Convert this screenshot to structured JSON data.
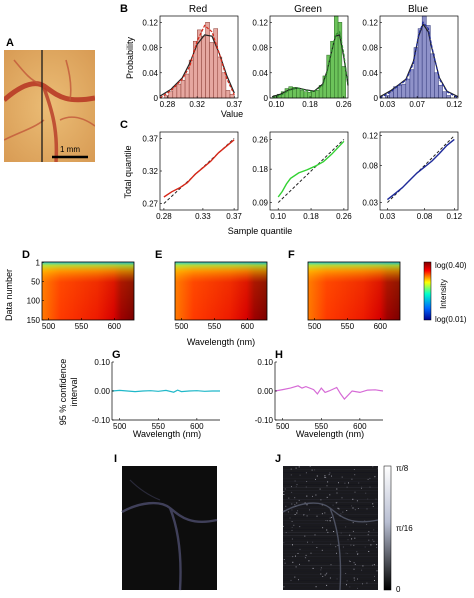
{
  "panel_letters": [
    "A",
    "B",
    "C",
    "D",
    "E",
    "F",
    "G",
    "H",
    "I",
    "J"
  ],
  "photo": {
    "scale_label": "1 mm",
    "colors": {
      "background": "#e3b067",
      "vessel": "#b83a26"
    }
  },
  "hist_titles": [
    "Red",
    "Green",
    "Blue"
  ],
  "labels": {
    "b_ylabel": "Probability",
    "b_xlabel": "Value",
    "c_ylabel": "Total quantile",
    "c_xlabel": "Sample quantile",
    "d_ylabel": "Data number",
    "ef_xlabel": "Wavelength (nm)",
    "g_ylabel_line1": "95 % confidence",
    "g_ylabel_line2": "interval",
    "g_xlabel": "Wavelength (nm)",
    "h_xlabel": "Wavelength (nm)",
    "intensity_label": "Intensity",
    "cbar_top": "log(0.40)",
    "cbar_bottom": "log(0.01)",
    "j_cbar_top": "π/8",
    "j_cbar_mid": "π/16",
    "j_cbar_bottom": "0"
  },
  "chart_data": [
    {
      "panel": "B",
      "type": "bar",
      "title": "Red",
      "ylabel": "Probability",
      "xlabel": "Value",
      "xlim": [
        0.27,
        0.375
      ],
      "ylim": [
        0,
        0.13
      ],
      "xticks": [
        "0.28",
        "0.32",
        "0.37"
      ],
      "xtick_values": [
        0.28,
        0.32,
        0.37
      ],
      "yticks": [
        "0",
        "0.04",
        "0.08",
        "0.12"
      ],
      "ytick_values": [
        0,
        0.04,
        0.08,
        0.12
      ],
      "bin_width": 0.0055,
      "bins_x": [
        0.279,
        0.2845,
        0.29,
        0.2955,
        0.301,
        0.3065,
        0.312,
        0.3175,
        0.323,
        0.3285,
        0.334,
        0.3395,
        0.345,
        0.3505,
        0.356,
        0.3615,
        0.367
      ],
      "values": [
        0.004,
        0.01,
        0.018,
        0.022,
        0.028,
        0.038,
        0.06,
        0.09,
        0.108,
        0.098,
        0.12,
        0.088,
        0.11,
        0.065,
        0.04,
        0.012,
        0.006
      ],
      "colors": {
        "bar": "#e6a7a0",
        "edge": "#8a3c34",
        "fit_line": "#d62718",
        "kde_line": "#222222"
      },
      "fit_x": [
        0.27,
        0.285,
        0.3,
        0.31,
        0.32,
        0.33,
        0.34,
        0.35,
        0.36,
        0.37
      ],
      "fit_y": [
        0.0,
        0.012,
        0.03,
        0.05,
        0.09,
        0.115,
        0.105,
        0.07,
        0.03,
        0.005
      ],
      "kde_x": [
        0.27,
        0.285,
        0.3,
        0.31,
        0.32,
        0.33,
        0.34,
        0.35,
        0.36,
        0.37
      ],
      "kde_y": [
        0.003,
        0.014,
        0.032,
        0.055,
        0.085,
        0.1,
        0.098,
        0.07,
        0.035,
        0.008
      ]
    },
    {
      "panel": "B",
      "type": "bar",
      "title": "Green",
      "xlim": [
        0.085,
        0.27
      ],
      "ylim": [
        0,
        0.13
      ],
      "xticks": [
        "0.10",
        "0.18",
        "0.26"
      ],
      "xtick_values": [
        0.1,
        0.18,
        0.26
      ],
      "yticks": [
        "0",
        "0.04",
        "0.08",
        "0.12"
      ],
      "ytick_values": [
        0,
        0.04,
        0.08,
        0.12
      ],
      "bin_width": 0.009,
      "bins_x": [
        0.098,
        0.107,
        0.116,
        0.125,
        0.134,
        0.143,
        0.152,
        0.161,
        0.17,
        0.179,
        0.188,
        0.197,
        0.206,
        0.215,
        0.224,
        0.233,
        0.242,
        0.251,
        0.26
      ],
      "values": [
        0.004,
        0.006,
        0.01,
        0.015,
        0.018,
        0.017,
        0.015,
        0.012,
        0.01,
        0.009,
        0.01,
        0.012,
        0.02,
        0.035,
        0.068,
        0.09,
        0.13,
        0.12,
        0.05
      ],
      "colors": {
        "bar": "#6cc35a",
        "edge": "#2e6b26",
        "fit_line": "#2e8b2e",
        "kde_line": "#222222"
      },
      "fit_x": [
        0.09,
        0.11,
        0.13,
        0.15,
        0.17,
        0.19,
        0.21,
        0.22,
        0.23,
        0.24,
        0.25,
        0.26,
        0.27
      ],
      "fit_y": [
        0.0,
        0.004,
        0.012,
        0.016,
        0.012,
        0.01,
        0.02,
        0.04,
        0.07,
        0.1,
        0.105,
        0.07,
        0.02
      ],
      "kde_x": [
        0.09,
        0.11,
        0.13,
        0.15,
        0.17,
        0.19,
        0.21,
        0.22,
        0.23,
        0.24,
        0.25,
        0.26,
        0.27
      ],
      "kde_y": [
        0.002,
        0.006,
        0.013,
        0.016,
        0.013,
        0.011,
        0.022,
        0.042,
        0.07,
        0.098,
        0.1,
        0.065,
        0.02
      ]
    },
    {
      "panel": "B",
      "type": "bar",
      "title": "Blue",
      "xlim": [
        0.02,
        0.125
      ],
      "ylim": [
        0,
        0.13
      ],
      "xticks": [
        "0.03",
        "0.07",
        "0.12"
      ],
      "xtick_values": [
        0.03,
        0.07,
        0.12
      ],
      "yticks": [
        "0",
        "0.04",
        "0.08",
        "0.12"
      ],
      "ytick_values": [
        0,
        0.04,
        0.08,
        0.12
      ],
      "bin_width": 0.0055,
      "bins_x": [
        0.03,
        0.0355,
        0.041,
        0.0465,
        0.052,
        0.0575,
        0.063,
        0.0685,
        0.074,
        0.0795,
        0.085,
        0.0905,
        0.096,
        0.1015,
        0.107,
        0.1125
      ],
      "values": [
        0.004,
        0.01,
        0.018,
        0.02,
        0.022,
        0.03,
        0.045,
        0.08,
        0.11,
        0.13,
        0.115,
        0.07,
        0.04,
        0.02,
        0.01,
        0.004
      ],
      "colors": {
        "bar": "#8f92c9",
        "edge": "#2f3578",
        "fit_line": "#1e2a9a",
        "kde_line": "#222222"
      },
      "fit_x": [
        0.02,
        0.035,
        0.045,
        0.055,
        0.065,
        0.072,
        0.078,
        0.085,
        0.09,
        0.1,
        0.11,
        0.125
      ],
      "fit_y": [
        0.0,
        0.01,
        0.02,
        0.028,
        0.055,
        0.1,
        0.12,
        0.11,
        0.08,
        0.03,
        0.01,
        0.0
      ],
      "kde_x": [
        0.02,
        0.035,
        0.045,
        0.055,
        0.065,
        0.072,
        0.078,
        0.085,
        0.09,
        0.1,
        0.11,
        0.125
      ],
      "kde_y": [
        0.002,
        0.012,
        0.021,
        0.03,
        0.058,
        0.098,
        0.117,
        0.105,
        0.078,
        0.032,
        0.011,
        0.002
      ]
    },
    {
      "panel": "C",
      "type": "line",
      "ylabel": "Total quantile",
      "xlabel": "Sample quantile",
      "xlim": [
        0.275,
        0.375
      ],
      "ylim": [
        0.26,
        0.38
      ],
      "xticks": [
        "0.28",
        "0.33",
        "0.37"
      ],
      "xtick_values": [
        0.28,
        0.33,
        0.37
      ],
      "yticks": [
        "0.27",
        "0.32",
        "0.37"
      ],
      "ytick_values": [
        0.27,
        0.32,
        0.37
      ],
      "colors": {
        "line": "#d62718"
      },
      "x": [
        0.28,
        0.29,
        0.3,
        0.31,
        0.32,
        0.33,
        0.34,
        0.35,
        0.36,
        0.37
      ],
      "y": [
        0.28,
        0.288,
        0.294,
        0.302,
        0.315,
        0.325,
        0.335,
        0.348,
        0.358,
        0.368
      ],
      "reference": [
        [
          0.28,
          0.27
        ],
        [
          0.37,
          0.37
        ]
      ]
    },
    {
      "panel": "C",
      "type": "line",
      "xlim": [
        0.08,
        0.27
      ],
      "ylim": [
        0.07,
        0.28
      ],
      "xticks": [
        "0.10",
        "0.18",
        "0.26"
      ],
      "xtick_values": [
        0.1,
        0.18,
        0.26
      ],
      "yticks": [
        "0.09",
        "0.18",
        "0.26"
      ],
      "ytick_values": [
        0.09,
        0.18,
        0.26
      ],
      "colors": {
        "line": "#32d232"
      },
      "x": [
        0.1,
        0.11,
        0.12,
        0.13,
        0.15,
        0.17,
        0.19,
        0.21,
        0.23,
        0.26
      ],
      "y": [
        0.105,
        0.12,
        0.14,
        0.155,
        0.17,
        0.178,
        0.188,
        0.2,
        0.22,
        0.255
      ],
      "reference": [
        [
          0.1,
          0.09
        ],
        [
          0.26,
          0.26
        ]
      ]
    },
    {
      "panel": "C",
      "type": "line",
      "xlim": [
        0.02,
        0.125
      ],
      "ylim": [
        0.02,
        0.125
      ],
      "xticks": [
        "0.03",
        "0.08",
        "0.12"
      ],
      "xtick_values": [
        0.03,
        0.08,
        0.12
      ],
      "yticks": [
        "0.03",
        "0.08",
        "0.12"
      ],
      "ytick_values": [
        0.03,
        0.08,
        0.12
      ],
      "colors": {
        "line": "#1e2a9a"
      },
      "x": [
        0.03,
        0.04,
        0.05,
        0.06,
        0.07,
        0.08,
        0.09,
        0.1,
        0.11,
        0.12
      ],
      "y": [
        0.034,
        0.042,
        0.05,
        0.06,
        0.07,
        0.078,
        0.086,
        0.096,
        0.107,
        0.115
      ],
      "reference": [
        [
          0.03,
          0.03
        ],
        [
          0.12,
          0.12
        ]
      ]
    },
    {
      "panel": "D",
      "type": "heatmap",
      "ylabel": "Data number",
      "xlim": [
        490,
        630
      ],
      "ylim": [
        150,
        0
      ],
      "xticks": [
        "500",
        "550",
        "600"
      ],
      "xtick_values": [
        500,
        550,
        600
      ],
      "yticks": [
        "1",
        "50",
        "100",
        "150"
      ],
      "ytick_values": [
        1,
        50,
        100,
        150
      ]
    },
    {
      "panel": "E",
      "type": "heatmap",
      "xlabel": "Wavelength (nm)",
      "xlim": [
        490,
        630
      ],
      "ylim": [
        150,
        0
      ],
      "xticks": [
        "500",
        "550",
        "600"
      ],
      "xtick_values": [
        500,
        550,
        600
      ]
    },
    {
      "panel": "F",
      "type": "heatmap",
      "xlim": [
        490,
        630
      ],
      "ylim": [
        150,
        0
      ],
      "xticks": [
        "500",
        "550",
        "600"
      ],
      "xtick_values": [
        500,
        550,
        600
      ],
      "colorbar": {
        "label": "Intensity",
        "top": "log(0.40)",
        "bottom": "log(0.01)"
      }
    },
    {
      "panel": "G",
      "type": "line",
      "xlabel": "Wavelength (nm)",
      "xlim": [
        490,
        630
      ],
      "ylim": [
        -0.1,
        0.1
      ],
      "xticks": [
        "500",
        "550",
        "600"
      ],
      "xtick_values": [
        500,
        550,
        600
      ],
      "yticks": [
        "-0.10",
        "0.00",
        "0.10"
      ],
      "ytick_values": [
        -0.1,
        0.0,
        0.1
      ],
      "colors": {
        "line": "#1fb8c9"
      },
      "x": [
        490,
        500,
        510,
        520,
        530,
        540,
        550,
        560,
        570,
        575,
        580,
        590,
        600,
        610,
        620,
        630
      ],
      "y": [
        0.0,
        0.002,
        0.0,
        -0.002,
        0.0,
        0.001,
        -0.001,
        0.002,
        -0.004,
        0.003,
        -0.002,
        0.0,
        0.001,
        -0.001,
        0.0,
        0.0
      ]
    },
    {
      "panel": "H",
      "type": "line",
      "xlabel": "Wavelength (nm)",
      "xlim": [
        490,
        630
      ],
      "ylim": [
        -0.1,
        0.1
      ],
      "xticks": [
        "500",
        "550",
        "600"
      ],
      "xtick_values": [
        500,
        550,
        600
      ],
      "yticks": [
        "-0.10",
        "0.00",
        "0.10"
      ],
      "ytick_values": [
        -0.1,
        0.0,
        0.1
      ],
      "colors": {
        "line": "#d66ad6"
      },
      "x": [
        490,
        500,
        510,
        520,
        525,
        530,
        540,
        545,
        550,
        555,
        560,
        570,
        575,
        580,
        590,
        600,
        610,
        620,
        630
      ],
      "y": [
        0.0,
        0.005,
        0.01,
        0.018,
        0.01,
        0.015,
        0.005,
        -0.01,
        0.01,
        -0.005,
        0.0,
        0.012,
        -0.01,
        -0.028,
        0.0,
        -0.005,
        0.003,
        0.004,
        0.0
      ]
    },
    {
      "panel": "J",
      "type": "heatmap",
      "colorbar": {
        "top": "π/8",
        "middle": "π/16",
        "bottom": "0"
      }
    }
  ]
}
